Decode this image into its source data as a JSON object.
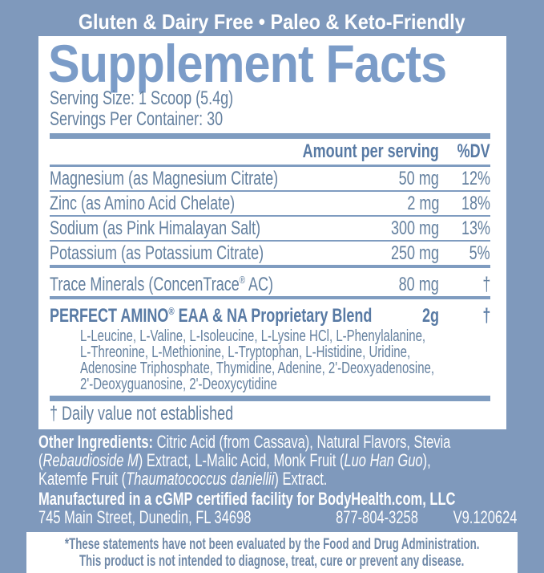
{
  "banner": {
    "text": "Gluten & Dairy Free • Paleo & Keto-Friendly"
  },
  "panel": {
    "title": "Supplement Facts",
    "serving_size": "Serving Size: 1 Scoop (5.4g)",
    "servings_per_container": "Servings Per Container: 30",
    "header": {
      "amount_label": "Amount per serving",
      "dv_label": "%DV"
    },
    "rows": [
      {
        "name": "Magnesium (as Magnesium Citrate)",
        "amount": "50 mg",
        "dv": "12%"
      },
      {
        "name": "Zinc (as Amino Acid Chelate)",
        "amount": "2 mg",
        "dv": "18%"
      },
      {
        "name": "Sodium (as Pink Himalayan Salt)",
        "amount": "300 mg",
        "dv": "13%"
      },
      {
        "name": "Potassium (as Potassium Citrate)",
        "amount": "250 mg",
        "dv": "5%"
      }
    ],
    "trace_row": {
      "name_rich": [
        {
          "t": "Trace Minerals (ConcenTrace"
        },
        {
          "t": "®",
          "sup": true
        },
        {
          "t": " AC)"
        }
      ],
      "amount": "80 mg",
      "dv": "†"
    },
    "blend_row": {
      "name_rich": [
        {
          "t": "PERFECT AMINO"
        },
        {
          "t": "®",
          "sup": true
        },
        {
          "t": " EAA & NA Proprietary Blend"
        }
      ],
      "amount": "2g",
      "dv": "†"
    },
    "blend_ingredient_lines": [
      "L-Leucine, L-Valine, L-Isoleucine, L-Lysine HCl, L-Phenylalanine,",
      "L-Threonine, L-Methionine, L-Tryptophan, L-Histidine, Uridine,",
      "Adenosine Triphosphate, Thymidine, Adenine, 2'-Deoxyadenosine,",
      "2'-Deoxyguanosine, 2'-Deoxycytidine"
    ],
    "footnote": "† Daily value not established"
  },
  "other_ingredients": {
    "line1": [
      {
        "t": "Other Ingredients: ",
        "b": true
      },
      {
        "t": "Citric Acid (from Cassava), Natural Flavors, Stevia"
      }
    ],
    "line2": [
      {
        "t": "("
      },
      {
        "t": "Rebaudioside M",
        "i": true
      },
      {
        "t": ") Extract, L-Malic Acid, Monk Fruit ("
      },
      {
        "t": "Luo Han Guo",
        "i": true
      },
      {
        "t": "),"
      }
    ],
    "line3": [
      {
        "t": "Katemfe Fruit ("
      },
      {
        "t": "Thaumatococcus daniellii",
        "i": true
      },
      {
        "t": ") Extract."
      }
    ]
  },
  "manufacturer": {
    "line1": "Manufactured in a cGMP certified facility for  BodyHealth.com, LLC",
    "address": "745 Main Street, Dunedin, FL 34698",
    "phone": "877-804-3258",
    "version": "V9.120624"
  },
  "disclaimer": {
    "line1": "*These statements have not been evaluated by the Food and Drug Administration.",
    "line2": "This product is not intended to diagnose, treat, cure or prevent any disease."
  },
  "colors": {
    "background": "#7F99BC",
    "panel": "#FFFFFF",
    "title": "#7B9CC8",
    "body_text": "#64809F",
    "bold_text": "#587AA4",
    "rule": "#7F9CC0",
    "banner_text": "#FFFFFF",
    "disclaimer_text": "#7089A8"
  }
}
